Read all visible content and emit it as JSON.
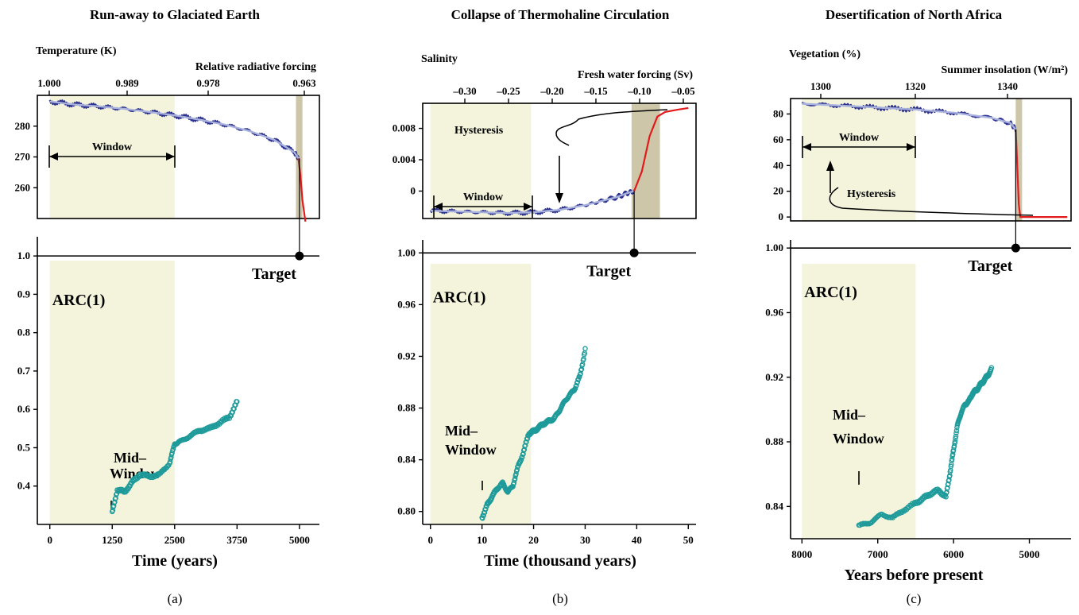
{
  "figure": {
    "colors": {
      "window_fill": "#f4f4dc",
      "transition_fill": "#cdc6a8",
      "series_blue": "#2a2f8c",
      "series_light": "#a9b2dd",
      "transition_red": "#e31a1c",
      "arc": "#1e9a9a"
    }
  },
  "chart_data": [
    {
      "type": "line",
      "id": "a",
      "title": "Run-away to Glaciated Earth",
      "caption": "(a)",
      "top": {
        "ylabel": "Temperature (K)",
        "x2label": "Relative radiative forcing",
        "x2ticks": [
          "1.000",
          "0.989",
          "0.978",
          "0.963"
        ],
        "yticks": [
          260,
          270,
          280
        ],
        "ylim": [
          250,
          290
        ],
        "series": {
          "x": [
            0,
            500,
            1000,
            1500,
            2000,
            2500,
            3000,
            3500,
            4000,
            4500,
            4900,
            4980
          ],
          "y": [
            288,
            287,
            286.4,
            285.6,
            284.6,
            283.5,
            282.1,
            280.5,
            278.4,
            275.5,
            271.5,
            269.5
          ]
        },
        "collapse": {
          "x": [
            4980,
            5020,
            5060,
            5120
          ],
          "y": [
            269.5,
            264,
            256,
            249
          ]
        },
        "transition": [
          4930,
          5060
        ],
        "annotations": [
          "Window"
        ]
      },
      "bottom": {
        "ylabel": "ARC(1)",
        "xlabel": "Time (years)",
        "xticks": [
          0,
          1250,
          2500,
          3750,
          5000
        ],
        "yticks": [
          "0.4",
          "0.5",
          "0.6",
          "0.7",
          "0.8",
          "0.9",
          "1.0"
        ],
        "xlim": [
          -250,
          5400
        ],
        "ylim": [
          0.3,
          1.05
        ],
        "window": [
          0,
          2500
        ],
        "target": {
          "x": 5000,
          "y": 1.0,
          "label": "Target"
        },
        "midwindow_label": [
          "Mid–",
          "Window"
        ],
        "arc_series": {
          "x": [
            1250,
            1350,
            1500,
            1650,
            1800,
            2000,
            2200,
            2400,
            2500,
            2600,
            2800,
            3000,
            3200,
            3400,
            3600,
            3750
          ],
          "y": [
            0.33,
            0.39,
            0.385,
            0.41,
            0.43,
            0.425,
            0.43,
            0.46,
            0.51,
            0.515,
            0.53,
            0.545,
            0.55,
            0.565,
            0.58,
            0.62
          ]
        }
      }
    },
    {
      "type": "line",
      "id": "b",
      "title": "Collapse of Thermohaline Circulation",
      "caption": "(b)",
      "top": {
        "ylabel": "Salinity",
        "x2label": "Fresh water forcing (Sv)",
        "x2ticks": [
          "–0.30",
          "–0.25",
          "–0.20",
          "–0.15",
          "–0.10",
          "–0.05"
        ],
        "yticks": [
          "0",
          "0.004",
          "0.008"
        ],
        "ylim": [
          -0.0035,
          0.0112
        ],
        "series": {
          "x": [
            0,
            5,
            10,
            15,
            20,
            25,
            30,
            33,
            36,
            38,
            39.5
          ],
          "y": [
            -0.0025,
            -0.0026,
            -0.0027,
            -0.0028,
            -0.0027,
            -0.0024,
            -0.0018,
            -0.0013,
            -0.0008,
            -0.0003,
            0
          ]
        },
        "collapse": {
          "x": [
            39.5,
            41,
            42.5,
            44,
            45.5,
            48,
            50
          ],
          "y": [
            0,
            0.0025,
            0.007,
            0.0095,
            0.0101,
            0.0104,
            0.0106
          ]
        },
        "transition": [
          39,
          44.5
        ],
        "annotations": [
          "Window",
          "Hysteresis"
        ]
      },
      "bottom": {
        "ylabel": "ARC(1)",
        "xlabel": "Time (thousand years)",
        "xticks": [
          0,
          10,
          20,
          30,
          40,
          50
        ],
        "yticks": [
          "0.80",
          "0.84",
          "0.88",
          "0.92",
          "0.96",
          "1.00"
        ],
        "xlim": [
          -1.5,
          51.5
        ],
        "ylim": [
          0.79,
          1.01
        ],
        "window": [
          0,
          19.5
        ],
        "target": {
          "x": 39.5,
          "y": 1.0,
          "label": "Target"
        },
        "midwindow_label": [
          "Mid–",
          "Window"
        ],
        "arc_series": {
          "x": [
            10,
            11,
            12,
            13,
            14,
            15,
            16,
            17,
            18,
            19,
            20,
            21,
            22,
            23,
            24,
            25,
            26,
            27,
            28,
            29,
            30
          ],
          "y": [
            0.795,
            0.805,
            0.812,
            0.818,
            0.822,
            0.815,
            0.82,
            0.835,
            0.845,
            0.86,
            0.862,
            0.865,
            0.868,
            0.87,
            0.872,
            0.878,
            0.885,
            0.89,
            0.895,
            0.905,
            0.925
          ]
        }
      }
    },
    {
      "type": "line",
      "id": "c",
      "title": "Desertification of North Africa",
      "caption": "(c)",
      "top": {
        "ylabel": "Vegetation (%)",
        "x2label": "Summer insolation (W/m²)",
        "x2ticks": [
          "1300",
          "1320",
          "1340"
        ],
        "yticks": [
          0,
          20,
          40,
          60,
          80
        ],
        "ylim": [
          -3,
          92
        ],
        "series": {
          "x": [
            8000,
            7500,
            7000,
            6500,
            6000,
            5500,
            5250,
            5180
          ],
          "y": [
            88,
            86.5,
            85,
            83.5,
            81,
            77,
            73,
            68
          ]
        },
        "collapse": {
          "x": [
            5180,
            5160,
            5140,
            5120,
            5000,
            4500
          ],
          "y": [
            68,
            40,
            10,
            0,
            0,
            0
          ]
        },
        "transition": [
          5180,
          5110
        ],
        "annotations": [
          "Window",
          "Hysteresis"
        ]
      },
      "bottom": {
        "ylabel": "ARC(1)",
        "xlabel": "Years before present",
        "xticks": [
          8000,
          7000,
          6000,
          5000
        ],
        "yticks": [
          "0.84",
          "0.88",
          "0.92",
          "0.96",
          "1.00"
        ],
        "xlim": [
          8150,
          4450
        ],
        "ylim": [
          0.82,
          1.005
        ],
        "window": [
          8000,
          6500
        ],
        "target": {
          "x": 5180,
          "y": 1.0,
          "label": "Target"
        },
        "midwindow_label": [
          "Mid–",
          "Window"
        ],
        "arc_series": {
          "x": [
            7250,
            7100,
            6950,
            6800,
            6650,
            6500,
            6400,
            6300,
            6200,
            6100,
            6050,
            6000,
            5950,
            5900,
            5850,
            5800,
            5750,
            5700,
            5650,
            5600,
            5550,
            5500
          ],
          "y": [
            0.828,
            0.83,
            0.835,
            0.833,
            0.838,
            0.842,
            0.845,
            0.848,
            0.85,
            0.846,
            0.86,
            0.875,
            0.89,
            0.898,
            0.903,
            0.905,
            0.91,
            0.912,
            0.915,
            0.918,
            0.921,
            0.925
          ]
        }
      }
    }
  ]
}
